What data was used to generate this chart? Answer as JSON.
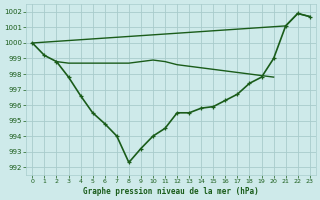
{
  "line1_diagonal": {
    "x": [
      0,
      21,
      22,
      23
    ],
    "y": [
      1000.0,
      1001.1,
      1001.9,
      1001.7
    ],
    "color": "#1a5c1a",
    "linewidth": 1.0,
    "marker": null
  },
  "line2_flat": {
    "x": [
      2,
      3,
      4,
      5,
      6,
      7,
      8,
      9,
      10,
      11,
      12,
      13,
      14,
      15,
      16,
      17,
      18,
      19,
      20
    ],
    "y": [
      998.8,
      998.7,
      998.7,
      998.7,
      998.7,
      998.7,
      998.7,
      998.8,
      998.9,
      998.8,
      998.6,
      998.5,
      998.4,
      998.3,
      998.2,
      998.1,
      998.0,
      997.9,
      997.8
    ],
    "color": "#1a5c1a",
    "linewidth": 1.0,
    "marker": null
  },
  "line3_vshape": {
    "x": [
      0,
      1,
      2,
      3,
      4,
      5,
      6,
      7,
      8,
      9,
      10,
      11,
      12,
      13,
      14,
      15,
      16,
      17,
      18,
      19,
      20,
      21,
      22,
      23
    ],
    "y": [
      1000.0,
      999.2,
      998.8,
      997.8,
      996.6,
      995.5,
      994.8,
      994.0,
      992.3,
      993.2,
      994.0,
      994.5,
      995.5,
      995.5,
      995.8,
      995.9,
      996.3,
      996.7,
      997.4,
      997.8,
      999.0,
      1001.1,
      1001.9,
      1001.7
    ],
    "color": "#1a5c1a",
    "linewidth": 1.2,
    "marker": "+"
  },
  "ylim": [
    991.5,
    1002.5
  ],
  "xlim": [
    -0.5,
    23.5
  ],
  "yticks": [
    992,
    993,
    994,
    995,
    996,
    997,
    998,
    999,
    1000,
    1001,
    1002
  ],
  "xticks": [
    0,
    1,
    2,
    3,
    4,
    5,
    6,
    7,
    8,
    9,
    10,
    11,
    12,
    13,
    14,
    15,
    16,
    17,
    18,
    19,
    20,
    21,
    22,
    23
  ],
  "xlabel": "Graphe pression niveau de la mer (hPa)",
  "bg_color": "#ceeaea",
  "grid_color": "#a8cccc",
  "line_color": "#1a5c1a"
}
